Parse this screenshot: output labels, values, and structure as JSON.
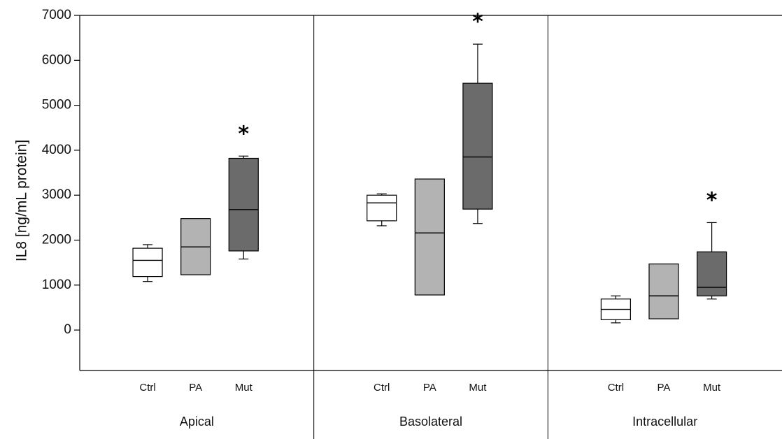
{
  "chart_data": {
    "type": "box",
    "ylabel": "IL8 [ng/mL protein]",
    "ylim": [
      -900,
      7000
    ],
    "yticks": [
      0,
      1000,
      2000,
      3000,
      4000,
      5000,
      6000,
      7000
    ],
    "grid": false,
    "groups": [
      {
        "label": "Apical",
        "boxes": [
          {
            "category": "Ctrl",
            "color": "#ffffff",
            "whisker_low": 1080,
            "q1": 1190,
            "median": 1550,
            "q3": 1820,
            "whisker_high": 1900,
            "significant": false
          },
          {
            "category": "PA",
            "color": "#b3b3b3",
            "whisker_low": 1230,
            "q1": 1230,
            "median": 1850,
            "q3": 2480,
            "whisker_high": 2480,
            "significant": false
          },
          {
            "category": "Mut",
            "color": "#6b6b6b",
            "whisker_low": 1580,
            "q1": 1760,
            "median": 2680,
            "q3": 3820,
            "whisker_high": 3870,
            "significant": true
          }
        ]
      },
      {
        "label": "Basolateral",
        "boxes": [
          {
            "category": "Ctrl",
            "color": "#ffffff",
            "whisker_low": 2320,
            "q1": 2430,
            "median": 2830,
            "q3": 3000,
            "whisker_high": 3030,
            "significant": false
          },
          {
            "category": "PA",
            "color": "#b3b3b3",
            "whisker_low": 780,
            "q1": 780,
            "median": 2160,
            "q3": 3360,
            "whisker_high": 3360,
            "significant": false
          },
          {
            "category": "Mut",
            "color": "#6b6b6b",
            "whisker_low": 2370,
            "q1": 2690,
            "median": 3850,
            "q3": 5490,
            "whisker_high": 6360,
            "significant": true
          }
        ]
      },
      {
        "label": "Intracellular",
        "boxes": [
          {
            "category": "Ctrl",
            "color": "#ffffff",
            "whisker_low": 160,
            "q1": 230,
            "median": 460,
            "q3": 690,
            "whisker_high": 760,
            "significant": false
          },
          {
            "category": "PA",
            "color": "#b3b3b3",
            "whisker_low": 250,
            "q1": 250,
            "median": 760,
            "q3": 1470,
            "whisker_high": 1470,
            "significant": false
          },
          {
            "category": "Mut",
            "color": "#6b6b6b",
            "whisker_low": 690,
            "q1": 760,
            "median": 950,
            "q3": 1740,
            "whisker_high": 2390,
            "significant": true
          }
        ]
      }
    ],
    "annotation": "*"
  }
}
